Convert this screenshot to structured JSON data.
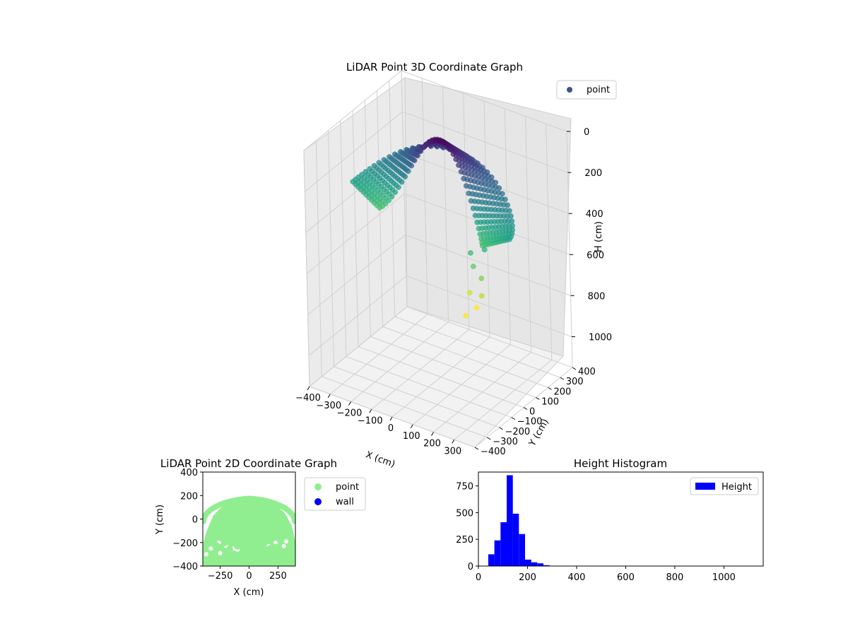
{
  "colors": {
    "point_2d": "#90ee90",
    "wall_2d": "#0000ff",
    "hist_bar": "#0000ff",
    "point_3d_legend": "#3b528b"
  },
  "chart_data": [
    {
      "type": "scatter",
      "title": "LiDAR Point 3D Coordinate Graph",
      "xlabel": "X (cm)",
      "ylabel": "Y (cm)",
      "zlabel": "H (cm)",
      "legend": {
        "placement": "top-right",
        "entries": [
          {
            "label": "point"
          }
        ]
      },
      "xticks": [
        "−400",
        "−300",
        "−200",
        "−100",
        "0",
        "100",
        "200",
        "300"
      ],
      "yticks": [
        "−400",
        "−300",
        "−200",
        "−100",
        "0",
        "100",
        "200",
        "300",
        "400"
      ],
      "zticks": [
        "0",
        "200",
        "400",
        "600",
        "800",
        "1000"
      ],
      "xlim": [
        -400,
        400
      ],
      "ylim": [
        -400,
        400
      ],
      "zlim": [
        0,
        1150
      ],
      "z_inverted": true,
      "colormap": "viridis",
      "description_shape": "Dome-shaped point cloud; points lie roughly on the half-ring y = sqrt(r^2 - x^2) with height increasing toward the outer edges",
      "series": [
        {
          "name": "point",
          "profile": [
            {
              "x": -380,
              "y": -200,
              "h": [
                120,
                520
              ]
            },
            {
              "x": -300,
              "y": 50,
              "h": [
                60,
                330
              ]
            },
            {
              "x": -150,
              "y": 150,
              "h": [
                30,
                230
              ]
            },
            {
              "x": 0,
              "y": 180,
              "h": [
                10,
                200
              ]
            },
            {
              "x": 150,
              "y": 150,
              "h": [
                30,
                230
              ]
            },
            {
              "x": 300,
              "y": 50,
              "h": [
                60,
                300
              ]
            },
            {
              "x": 380,
              "y": -200,
              "h": [
                120,
                580
              ]
            }
          ]
        }
      ],
      "grid": true
    },
    {
      "type": "scatter",
      "title": "LiDAR Point 2D Coordinate Graph",
      "xlabel": "X (cm)",
      "ylabel": "Y (cm)",
      "xlim": [
        -400,
        400
      ],
      "ylim": [
        -400,
        400
      ],
      "xticks": [
        "−250",
        "0",
        "250"
      ],
      "yticks": [
        "−400",
        "−200",
        "0",
        "200",
        "400"
      ],
      "legend": {
        "placement": "outside-right",
        "entries": [
          {
            "label": "point"
          },
          {
            "label": "wall"
          }
        ]
      },
      "series": [
        {
          "name": "point",
          "outline": [
            [
              -400,
              -400
            ],
            [
              -400,
              -220
            ],
            [
              -370,
              -110
            ],
            [
              -310,
              30
            ],
            [
              -230,
              110
            ],
            [
              -130,
              160
            ],
            [
              0,
              180
            ],
            [
              130,
              170
            ],
            [
              230,
              120
            ],
            [
              310,
              50
            ],
            [
              370,
              -60
            ],
            [
              400,
              -200
            ],
            [
              400,
              -400
            ]
          ],
          "holes": [
            [
              -260,
              -200
            ],
            [
              -200,
              -230
            ],
            [
              -250,
              -290
            ],
            [
              -130,
              -250
            ],
            [
              -100,
              -260
            ],
            [
              170,
              -230
            ],
            [
              230,
              -200
            ],
            [
              320,
              -190
            ],
            [
              300,
              -230
            ],
            [
              -370,
              -300
            ],
            [
              -330,
              -250
            ]
          ]
        },
        {
          "name": "wall",
          "points": []
        }
      ],
      "grid": false
    },
    {
      "type": "bar",
      "subtype": "histogram",
      "title": "Height Histogram",
      "xlabel": "",
      "ylabel": "",
      "xlim": [
        0,
        1160
      ],
      "ylim": [
        0,
        880
      ],
      "xticks": [
        "0",
        "200",
        "400",
        "600",
        "800",
        "1000"
      ],
      "yticks": [
        "0",
        "250",
        "500",
        "750"
      ],
      "legend": {
        "placement": "top-right",
        "entries": [
          {
            "label": "Height"
          }
        ]
      },
      "bin_width": 25,
      "bin_edges_start": 40,
      "series": [
        {
          "name": "Height",
          "values": [
            110,
            240,
            410,
            850,
            490,
            300,
            60,
            35,
            25,
            8,
            3,
            2
          ]
        }
      ],
      "grid": false
    }
  ]
}
